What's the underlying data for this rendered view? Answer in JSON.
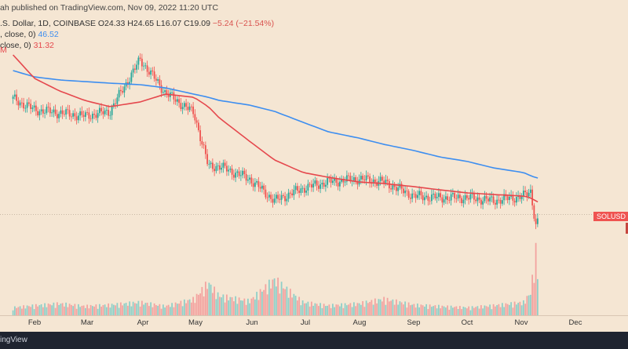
{
  "header": {
    "publish_text": "ah published on TradingView.com, Nov 09, 2022 11:20 UTC",
    "pair_text": ".S. Dollar, 1D, COINBASE",
    "ohlc_o": "O24.33",
    "ohlc_h": "H24.65",
    "ohlc_l": "L16.07",
    "ohlc_c": "C19.09",
    "ohlc_change": "−5.24 (−21.54%)",
    "ma1_prefix": ", close, 0)",
    "ma1_value": "46.52",
    "ma2_prefix": "close, 0)",
    "ma2_value": "31.32",
    "ma_marker": "M"
  },
  "price_tag": "SOLUSD",
  "brand": "ingView",
  "colors": {
    "background": "#f5e6d3",
    "up_candle": "#26a69a",
    "down_candle": "#ef5350",
    "ma_long": "#3d8ef0",
    "ma_short": "#e5484d",
    "volume_up": "#8fcfc8",
    "volume_down": "#f3a3a0",
    "axis_text": "#333333",
    "bottom_bar": "#1f2430"
  },
  "chart_data": {
    "type": "line",
    "x_tick_labels": [
      "Feb",
      "Mar",
      "Apr",
      "May",
      "Jun",
      "Jul",
      "Aug",
      "Sep",
      "Oct",
      "Nov",
      "Dec"
    ],
    "x": [
      "Jan 20",
      "Feb 1",
      "Feb 15",
      "Mar 1",
      "Mar 15",
      "Apr 1",
      "Apr 15",
      "May 1",
      "May 9",
      "May 15",
      "Jun 1",
      "Jun 15",
      "Jul 1",
      "Jul 15",
      "Aug 1",
      "Aug 15",
      "Sep 1",
      "Sep 15",
      "Oct 1",
      "Oct 15",
      "Nov 1",
      "Nov 5",
      "Nov 8",
      "Nov 9"
    ],
    "series": [
      {
        "values": [
          97,
          90,
          88,
          86,
          89,
          122,
          101,
          88,
          54,
          54,
          46,
          32,
          40,
          44,
          46,
          44,
          35,
          34,
          34,
          32,
          35,
          38,
          16,
          19.09
        ]
      },
      {
        "values": [
          115,
          111,
          109,
          108,
          107,
          106,
          104,
          100,
          98,
          96,
          93,
          89,
          82,
          76,
          72,
          68,
          64,
          60,
          57,
          53,
          50,
          48,
          46.7,
          46.52
        ]
      },
      {
        "values": [
          125,
          110,
          102,
          96,
          92,
          95,
          100,
          98,
          92,
          85,
          70,
          58,
          50,
          47,
          44,
          43,
          41,
          39,
          37,
          36,
          35,
          34,
          31.7,
          31.32
        ]
      }
    ],
    "volume_relative": [
      0.12,
      0.15,
      0.18,
      0.14,
      0.16,
      0.2,
      0.14,
      0.25,
      0.5,
      0.3,
      0.22,
      0.55,
      0.2,
      0.15,
      0.18,
      0.25,
      0.16,
      0.14,
      0.12,
      0.15,
      0.2,
      0.35,
      1.0,
      0.6
    ],
    "last_price": 19.09,
    "grid": false,
    "legend": "top-left"
  }
}
